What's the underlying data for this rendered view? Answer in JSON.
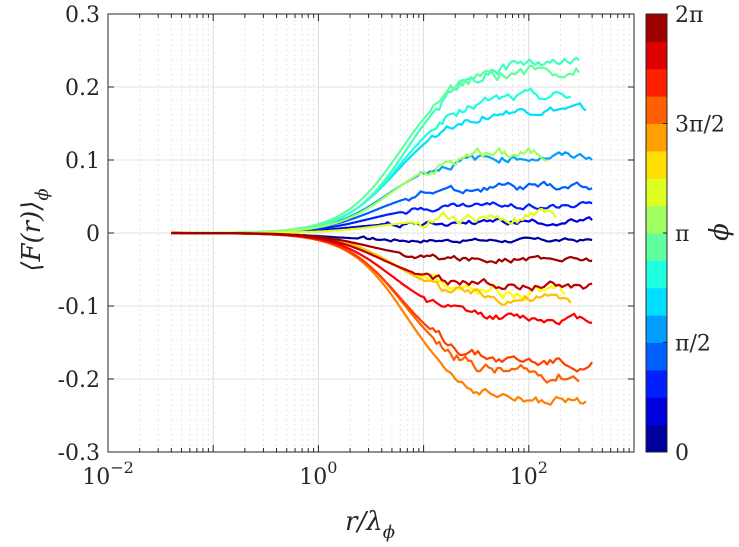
{
  "chart_data": {
    "type": "line",
    "title": "",
    "xlabel": "r/λ",
    "xlabel_sub": "ϕ",
    "ylabel": "⟨F(r)⟩",
    "ylabel_sub": "ϕ",
    "xscale": "log",
    "xlim": [
      0.01,
      1000
    ],
    "ylim": [
      -0.3,
      0.3
    ],
    "grid": true,
    "x_ticks": [
      {
        "value": 0.01,
        "base": "10",
        "exp": "−2"
      },
      {
        "value": 1,
        "base": "10",
        "exp": "0"
      },
      {
        "value": 100,
        "base": "10",
        "exp": "2"
      }
    ],
    "y_ticks": [
      {
        "value": 0.3,
        "label": "0.3"
      },
      {
        "value": 0.2,
        "label": "0.2"
      },
      {
        "value": 0.1,
        "label": "0.1"
      },
      {
        "value": 0,
        "label": "0"
      },
      {
        "value": -0.1,
        "label": "-0.1"
      },
      {
        "value": -0.2,
        "label": "-0.2"
      },
      {
        "value": -0.3,
        "label": "-0.3"
      }
    ],
    "colorbar": {
      "label": "ϕ",
      "range": [
        0,
        6.2832
      ],
      "ticks": [
        {
          "value": 0,
          "label": "0"
        },
        {
          "value": 1.5708,
          "label": "π/2"
        },
        {
          "value": 3.1416,
          "label": "π"
        },
        {
          "value": 4.7124,
          "label": "3π/2"
        },
        {
          "value": 6.2832,
          "label": "2π"
        }
      ],
      "levels": 16,
      "colormap": "jet"
    },
    "x_start": 0.04,
    "series": [
      {
        "name": "ϕ=0.20",
        "phi": 0.2,
        "x_end": 400,
        "plateau": -0.01,
        "rise": 1.2,
        "noise": 0.002
      },
      {
        "name": "ϕ=0.59",
        "phi": 0.59,
        "x_end": 400,
        "plateau": 0.015,
        "rise": 2.0,
        "noise": 0.003
      },
      {
        "name": "ϕ=0.98",
        "phi": 0.98,
        "x_end": 400,
        "plateau": 0.038,
        "rise": 3.0,
        "noise": 0.003
      },
      {
        "name": "ϕ=1.37",
        "phi": 1.37,
        "x_end": 400,
        "plateau": 0.063,
        "rise": 3.5,
        "noise": 0.004
      },
      {
        "name": "ϕ=1.76",
        "phi": 1.76,
        "x_end": 400,
        "plateau": 0.105,
        "rise": 4.5,
        "noise": 0.004
      },
      {
        "name": "ϕ=2.16",
        "phi": 2.16,
        "x_end": 350,
        "plateau": 0.168,
        "rise": 5.5,
        "noise": 0.004
      },
      {
        "name": "ϕ=2.55",
        "phi": 2.55,
        "x_end": 250,
        "plateau": 0.188,
        "rise": 6.0,
        "noise": 0.005
      },
      {
        "name": "ϕ=2.75",
        "phi": 2.75,
        "x_end": 300,
        "plateau": 0.232,
        "rise": 7.0,
        "noise": 0.006
      },
      {
        "name": "ϕ=2.94",
        "phi": 2.94,
        "x_end": 300,
        "plateau": 0.225,
        "rise": 6.0,
        "noise": 0.006
      },
      {
        "name": "ϕ=3.33",
        "phi": 3.33,
        "x_end": 150,
        "plateau": 0.112,
        "rise": 5.0,
        "noise": 0.006
      },
      {
        "name": "ϕ=3.73",
        "phi": 3.73,
        "x_end": 180,
        "plateau": 0.02,
        "rise": 4.0,
        "noise": 0.006
      },
      {
        "name": "ϕ=3.93",
        "phi": 3.93,
        "x_end": 220,
        "plateau": -0.082,
        "rise": 5.0,
        "noise": 0.006
      },
      {
        "name": "ϕ=4.32",
        "phi": 4.32,
        "x_end": 250,
        "plateau": -0.09,
        "rise": 5.5,
        "noise": 0.005
      },
      {
        "name": "ϕ=4.71",
        "phi": 4.71,
        "x_end": 350,
        "plateau": -0.232,
        "rise": 7.0,
        "noise": 0.005
      },
      {
        "name": "ϕ=4.91",
        "phi": 4.91,
        "x_end": 300,
        "plateau": -0.195,
        "rise": 6.5,
        "noise": 0.006
      },
      {
        "name": "ϕ=5.11",
        "phi": 5.11,
        "x_end": 400,
        "plateau": -0.178,
        "rise": 6.0,
        "noise": 0.005
      },
      {
        "name": "ϕ=5.50",
        "phi": 5.5,
        "x_end": 400,
        "plateau": -0.118,
        "rise": 5.0,
        "noise": 0.004
      },
      {
        "name": "ϕ=5.89",
        "phi": 5.89,
        "x_end": 400,
        "plateau": -0.072,
        "rise": 4.0,
        "noise": 0.004
      },
      {
        "name": "ϕ=6.09",
        "phi": 6.09,
        "x_end": 400,
        "plateau": -0.036,
        "rise": 3.0,
        "noise": 0.003
      }
    ]
  }
}
